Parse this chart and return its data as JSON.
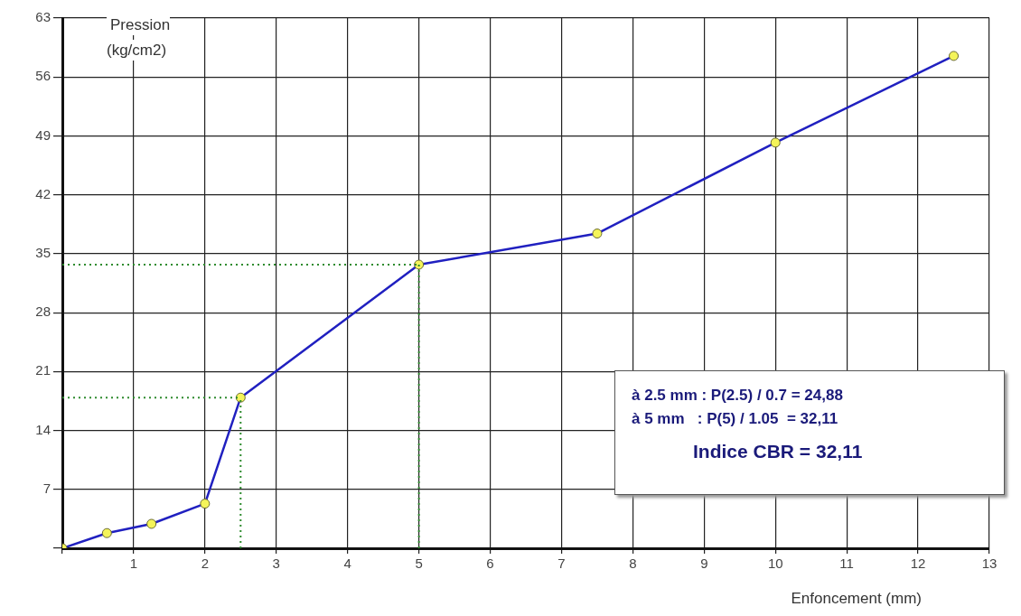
{
  "chart_data": {
    "type": "line",
    "xlabel": "Enfoncement (mm)",
    "ylabel": "Pression (kg/cm2)",
    "x": [
      0,
      0.625,
      1.25,
      2,
      2.5,
      5,
      7.5,
      10,
      12.5
    ],
    "series": [
      {
        "color": "#2020c0",
        "values": [
          0,
          1.8,
          2.9,
          5.3,
          17.9,
          33.7,
          37.4,
          48.2,
          58.5
        ]
      }
    ],
    "marker": "circle",
    "line_style": "solid",
    "grid": true,
    "legend": false,
    "xlim": [
      0,
      13
    ],
    "xticks": [
      {
        "value": 0,
        "label": null
      },
      1,
      2,
      3,
      4,
      5,
      6,
      7,
      8,
      9,
      10,
      11,
      12,
      13
    ],
    "ylim": [
      0,
      63
    ],
    "yticks": [
      {
        "value": 0,
        "label": null
      },
      7,
      14,
      21,
      28,
      35,
      42,
      49,
      56,
      63
    ],
    "ref_lines": [
      {
        "axis": "x",
        "value": 2.5,
        "color": "#2e8b2e",
        "line_style": "dotted"
      },
      {
        "axis": "y",
        "value": 17.9,
        "color": "#2e8b2e",
        "line_style": "dotted"
      },
      {
        "axis": "x",
        "value": 5,
        "color": "#2e8b2e",
        "line_style": "dotted"
      },
      {
        "axis": "y",
        "value": 33.7,
        "color": "#2e8b2e",
        "line_style": "dotted"
      }
    ],
    "annotations": [
      "à 2.5 mm : P(2.5) / 0.7 = 24,88",
      "à 5 mm   : P(5) / 1.05  = 32,11",
      "Indice CBR = 32,11"
    ]
  }
}
